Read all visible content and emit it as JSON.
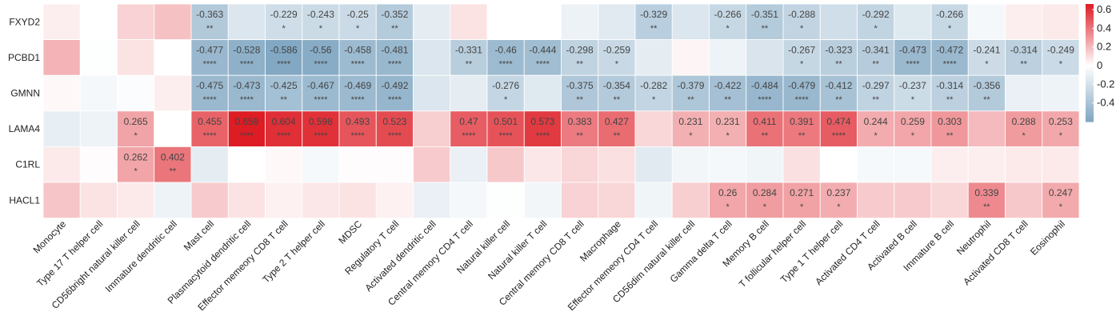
{
  "chart_data": {
    "type": "heatmap",
    "rows": [
      "FXYD2",
      "PCBD1",
      "GMNN",
      "LAMA4",
      "C1RL",
      "HACL1"
    ],
    "columns": [
      "Monocyte",
      "Type 17 T helper cell",
      "CD56bright natural killer cell",
      "Immature dendritic cell",
      "Mast cell",
      "Plasmacytoid dendritic cell",
      "Effector memeory CD8 T cell",
      "Type 2 T helper cell",
      "MDSC",
      "Regulatory T cell",
      "Activated dendritic cell",
      "Central memory CD4 T cell",
      "Natural killer cell",
      "Natural killer T cell",
      "Central memory CD8 T cell",
      "Macrophage",
      "Effector memeory CD4 T cell",
      "CD56dim natural killer cell",
      "Gamma delta T cell",
      "Memory B cell",
      "T follicular helper cell",
      "Type 1 T helper cell",
      "Activated CD4 T cell",
      "Activated B cell",
      "Immature  B cell",
      "Neutrophil",
      "Activated CD8 T cell",
      "Eosinophil"
    ],
    "values": [
      [
        0.05,
        0.0,
        0.13,
        0.18,
        -0.363,
        -0.17,
        -0.229,
        -0.243,
        -0.25,
        -0.352,
        -0.12,
        0.08,
        0.0,
        0.0,
        -0.09,
        -0.14,
        -0.329,
        -0.17,
        -0.266,
        -0.351,
        -0.288,
        -0.22,
        -0.292,
        -0.15,
        -0.266,
        -0.05,
        0.05,
        0.06
      ],
      [
        0.22,
        -0.01,
        0.08,
        0.0,
        -0.477,
        -0.528,
        -0.586,
        -0.56,
        -0.458,
        -0.481,
        -0.17,
        -0.331,
        -0.46,
        -0.444,
        -0.298,
        -0.259,
        -0.12,
        0.03,
        -0.08,
        -0.18,
        -0.267,
        -0.323,
        -0.341,
        -0.473,
        -0.472,
        -0.241,
        -0.314,
        -0.249
      ],
      [
        0.02,
        -0.05,
        -0.02,
        0.05,
        -0.475,
        -0.473,
        -0.425,
        -0.467,
        -0.469,
        -0.492,
        -0.17,
        -0.12,
        -0.276,
        -0.15,
        -0.375,
        -0.354,
        -0.282,
        -0.379,
        -0.422,
        -0.484,
        -0.479,
        -0.412,
        -0.297,
        -0.237,
        -0.314,
        -0.356,
        -0.1,
        -0.08
      ],
      [
        -0.11,
        -0.08,
        0.265,
        0.0,
        0.455,
        0.659,
        0.604,
        0.598,
        0.493,
        0.523,
        0.14,
        0.47,
        0.501,
        0.573,
        0.383,
        0.427,
        0.12,
        0.231,
        0.231,
        0.411,
        0.391,
        0.474,
        0.244,
        0.259,
        0.303,
        0.2,
        0.288,
        0.253
      ],
      [
        0.06,
        0.01,
        0.262,
        0.402,
        -0.12,
        0.0,
        0.02,
        -0.04,
        0.01,
        0.01,
        0.15,
        -0.1,
        0.16,
        0.07,
        0.12,
        0.09,
        -0.14,
        -0.06,
        -0.05,
        -0.07,
        0.09,
        0.0,
        -0.04,
        -0.04,
        0.05,
        0.05,
        0.06,
        0.06
      ],
      [
        0.17,
        0.08,
        0.06,
        -0.08,
        0.15,
        0.08,
        0.04,
        0.07,
        0.08,
        0.04,
        -0.1,
        -0.05,
        -0.01,
        -0.06,
        0.13,
        0.12,
        -0.07,
        0.14,
        0.26,
        0.284,
        0.271,
        0.237,
        0.15,
        0.15,
        0.12,
        0.339,
        0.16,
        0.247
      ]
    ],
    "labels": [
      [
        null,
        null,
        null,
        null,
        [
          "-0.363",
          "**"
        ],
        null,
        [
          "-0.229",
          "*"
        ],
        [
          "-0.243",
          "*"
        ],
        [
          "-0.25",
          "*"
        ],
        [
          "-0.352",
          "**"
        ],
        null,
        null,
        null,
        null,
        null,
        null,
        [
          "-0.329",
          "**"
        ],
        null,
        [
          "-0.266",
          "*"
        ],
        [
          "-0.351",
          "**"
        ],
        [
          "-0.288",
          "*"
        ],
        null,
        [
          "-0.292",
          "*"
        ],
        null,
        [
          "-0.266",
          "*"
        ],
        null,
        null,
        null
      ],
      [
        null,
        null,
        null,
        null,
        [
          "-0.477",
          "****"
        ],
        [
          "-0.528",
          "****"
        ],
        [
          "-0.586",
          "****"
        ],
        [
          "-0.56",
          "****"
        ],
        [
          "-0.458",
          "****"
        ],
        [
          "-0.481",
          "****"
        ],
        null,
        [
          "-0.331",
          "**"
        ],
        [
          "-0.46",
          "****"
        ],
        [
          "-0.444",
          "****"
        ],
        [
          "-0.298",
          "**"
        ],
        [
          "-0.259",
          "*"
        ],
        null,
        null,
        null,
        null,
        [
          "-0.267",
          "*"
        ],
        [
          "-0.323",
          "**"
        ],
        [
          "-0.341",
          "**"
        ],
        [
          "-0.473",
          "****"
        ],
        [
          "-0.472",
          "****"
        ],
        [
          "-0.241",
          "*"
        ],
        [
          "-0.314",
          "**"
        ],
        [
          "-0.249",
          "*"
        ]
      ],
      [
        null,
        null,
        null,
        null,
        [
          "-0.475",
          "****"
        ],
        [
          "-0.473",
          "****"
        ],
        [
          "-0.425",
          "**"
        ],
        [
          "-0.467",
          "****"
        ],
        [
          "-0.469",
          "****"
        ],
        [
          "-0.492",
          "****"
        ],
        null,
        null,
        [
          "-0.276",
          "*"
        ],
        null,
        [
          "-0.375",
          "**"
        ],
        [
          "-0.354",
          "**"
        ],
        [
          "-0.282",
          "*"
        ],
        [
          "-0.379",
          "**"
        ],
        [
          "-0.422",
          "**"
        ],
        [
          "-0.484",
          "****"
        ],
        [
          "-0.479",
          "****"
        ],
        [
          "-0.412",
          "**"
        ],
        [
          "-0.297",
          "**"
        ],
        [
          "-0.237",
          "*"
        ],
        [
          "-0.314",
          "**"
        ],
        [
          "-0.356",
          "**"
        ],
        null,
        null
      ],
      [
        null,
        null,
        [
          "0.265",
          "*"
        ],
        null,
        [
          "0.455",
          "****"
        ],
        [
          "0.659",
          "****"
        ],
        [
          "0.604",
          "****"
        ],
        [
          "0.598",
          "****"
        ],
        [
          "0.493",
          "****"
        ],
        [
          "0.523",
          "****"
        ],
        null,
        [
          "0.47",
          "****"
        ],
        [
          "0.501",
          "****"
        ],
        [
          "0.573",
          "****"
        ],
        [
          "0.383",
          "**"
        ],
        [
          "0.427",
          "**"
        ],
        null,
        [
          "0.231",
          "*"
        ],
        [
          "0.231",
          "*"
        ],
        [
          "0.411",
          "**"
        ],
        [
          "0.391",
          "**"
        ],
        [
          "0.474",
          "****"
        ],
        [
          "0.244",
          "*"
        ],
        [
          "0.259",
          "*"
        ],
        [
          "0.303",
          "**"
        ],
        null,
        [
          "0.288",
          "*"
        ],
        [
          "0.253",
          "*"
        ]
      ],
      [
        null,
        null,
        [
          "0.262",
          "*"
        ],
        [
          "0.402",
          "**"
        ],
        null,
        null,
        null,
        null,
        null,
        null,
        null,
        null,
        null,
        null,
        null,
        null,
        null,
        null,
        null,
        null,
        null,
        null,
        null,
        null,
        null,
        null,
        null,
        null
      ],
      [
        null,
        null,
        null,
        null,
        null,
        null,
        null,
        null,
        null,
        null,
        null,
        null,
        null,
        null,
        null,
        null,
        null,
        null,
        [
          "0.26",
          "*"
        ],
        [
          "0.284",
          "*"
        ],
        [
          "0.271",
          "*"
        ],
        [
          "0.237",
          "*"
        ],
        null,
        null,
        null,
        [
          "0.339",
          "**"
        ],
        null,
        [
          "0.247",
          "*"
        ]
      ]
    ],
    "colorbar": {
      "ticks": [
        "0.6",
        "0.4",
        "0.2",
        "0",
        "-0.2",
        "-0.4"
      ],
      "tick_values": [
        0.6,
        0.4,
        0.2,
        0,
        -0.2,
        -0.4
      ],
      "range": [
        -0.6,
        0.66
      ]
    },
    "colors": {
      "low": "#7fa6c2",
      "mid": "#ffffff",
      "high": "#dd1c24"
    }
  }
}
